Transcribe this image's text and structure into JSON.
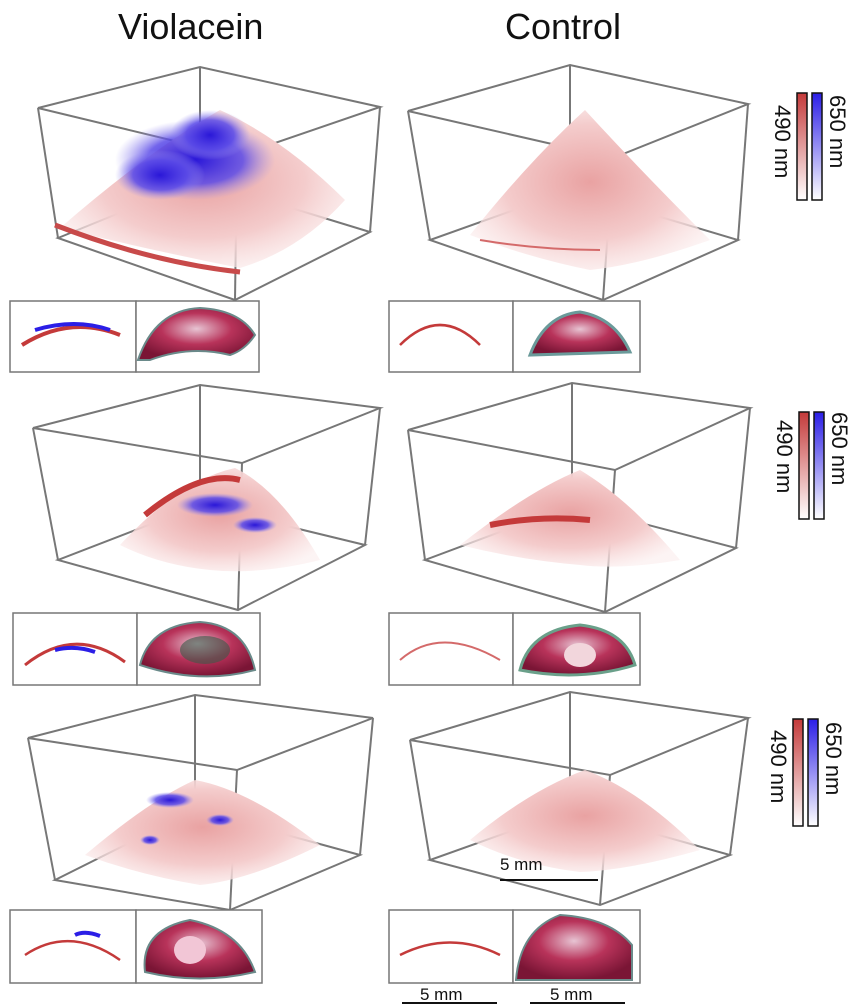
{
  "columns": {
    "left": "Violacein",
    "right": "Control"
  },
  "colorbar": {
    "red": "490 nm",
    "blue": "650 nm",
    "red_color": "#c43a3a",
    "blue_color": "#2b1ee6"
  },
  "scale": {
    "main": "5 mm",
    "inset_a": "5 mm",
    "inset_b": "5 mm"
  },
  "rows": 3,
  "panels": [
    {
      "row": 1,
      "group": "Violacein",
      "has_blue": true
    },
    {
      "row": 1,
      "group": "Control",
      "has_blue": false
    },
    {
      "row": 2,
      "group": "Violacein",
      "has_blue": true
    },
    {
      "row": 2,
      "group": "Control",
      "has_blue": false
    },
    {
      "row": 3,
      "group": "Violacein",
      "has_blue": true
    },
    {
      "row": 3,
      "group": "Control",
      "has_blue": false
    }
  ]
}
